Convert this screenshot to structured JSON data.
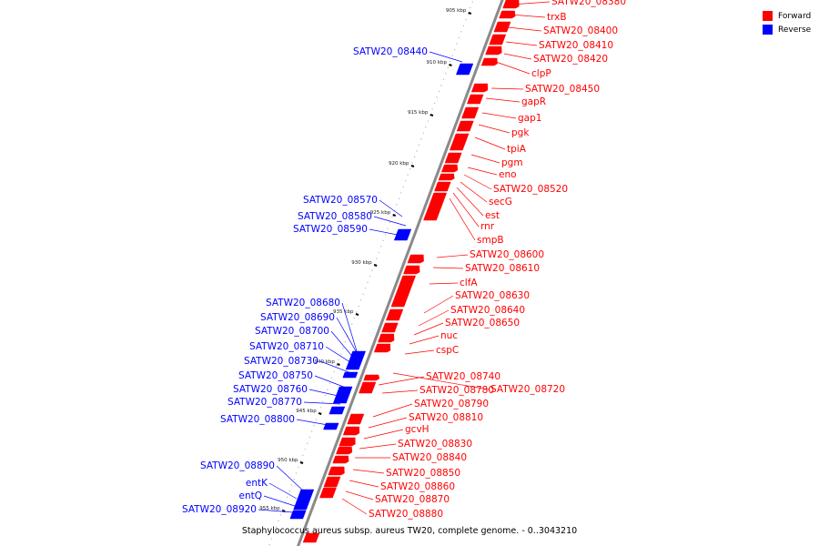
{
  "legend": {
    "forward_label": "Forward",
    "reverse_label": "Reverse",
    "forward_color": "#ff0000",
    "reverse_color": "#0000ff"
  },
  "footer": "Staphylococcus aureus subsp. aureus TW20, complete genome. - 0..3043210",
  "scale_ticks": [
    "905 kbp",
    "910 kbp",
    "915 kbp",
    "920 kbp",
    "925 kbp",
    "930 kbp",
    "935 kbp",
    "940 kbp",
    "945 kbp",
    "950 kbp",
    "955 kbp"
  ],
  "forward_genes": [
    "SATW20_08380",
    "trxB",
    "SATW20_08400",
    "SATW20_08410",
    "SATW20_08420",
    "clpP",
    "SATW20_08450",
    "gapR",
    "gap1",
    "pgk",
    "tpiA",
    "pgm",
    "eno",
    "SATW20_08520",
    "secG",
    "est",
    "rnr",
    "smpB",
    "SATW20_08600",
    "SATW20_08610",
    "clfA",
    "SATW20_08630",
    "SATW20_08640",
    "SATW20_08650",
    "nuc",
    "cspC",
    "SATW20_08740",
    "SATW20_08720",
    "SATW20_08780",
    "SATW20_08790",
    "SATW20_08810",
    "gcvH",
    "SATW20_08830",
    "SATW20_08840",
    "SATW20_08850",
    "SATW20_08860",
    "SATW20_08870",
    "SATW20_08880"
  ],
  "reverse_genes": [
    "SATW20_08440",
    "SATW20_08570",
    "SATW20_08580",
    "SATW20_08590",
    "SATW20_08680",
    "SATW20_08690",
    "SATW20_08700",
    "SATW20_08710",
    "SATW20_08730",
    "SATW20_08750",
    "SATW20_08760",
    "SATW20_08770",
    "SATW20_08800",
    "SATW20_08890",
    "entK",
    "entQ",
    "SATW20_08920"
  ]
}
